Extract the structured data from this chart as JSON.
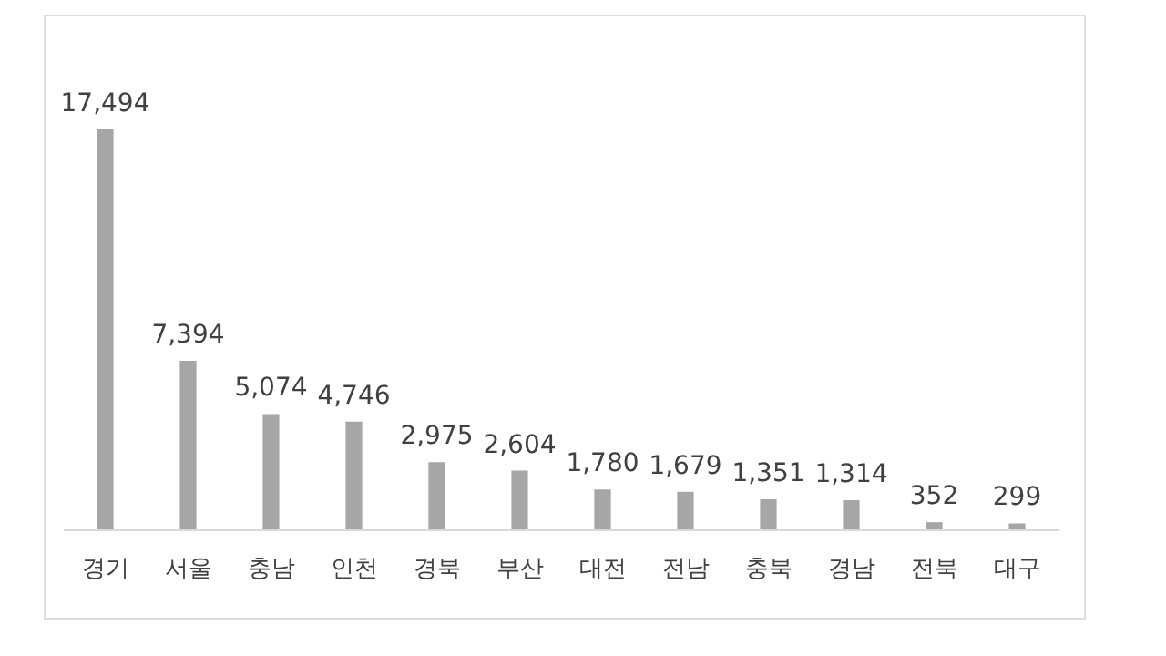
{
  "chart_data": {
    "type": "bar",
    "categories": [
      "경기",
      "서울",
      "충남",
      "인천",
      "경북",
      "부산",
      "대전",
      "전남",
      "충북",
      "경남",
      "전북",
      "대구"
    ],
    "values": [
      17494,
      7394,
      5074,
      4746,
      2975,
      2604,
      1780,
      1679,
      1351,
      1314,
      352,
      299
    ],
    "value_labels": [
      "17,494",
      "7,394",
      "5,074",
      "4,746",
      "2,975",
      "2,604",
      "1,780",
      "1,679",
      "1,351",
      "1,314",
      "352",
      "299"
    ],
    "color": "#a6a6a6",
    "grid": false,
    "legend": false
  }
}
